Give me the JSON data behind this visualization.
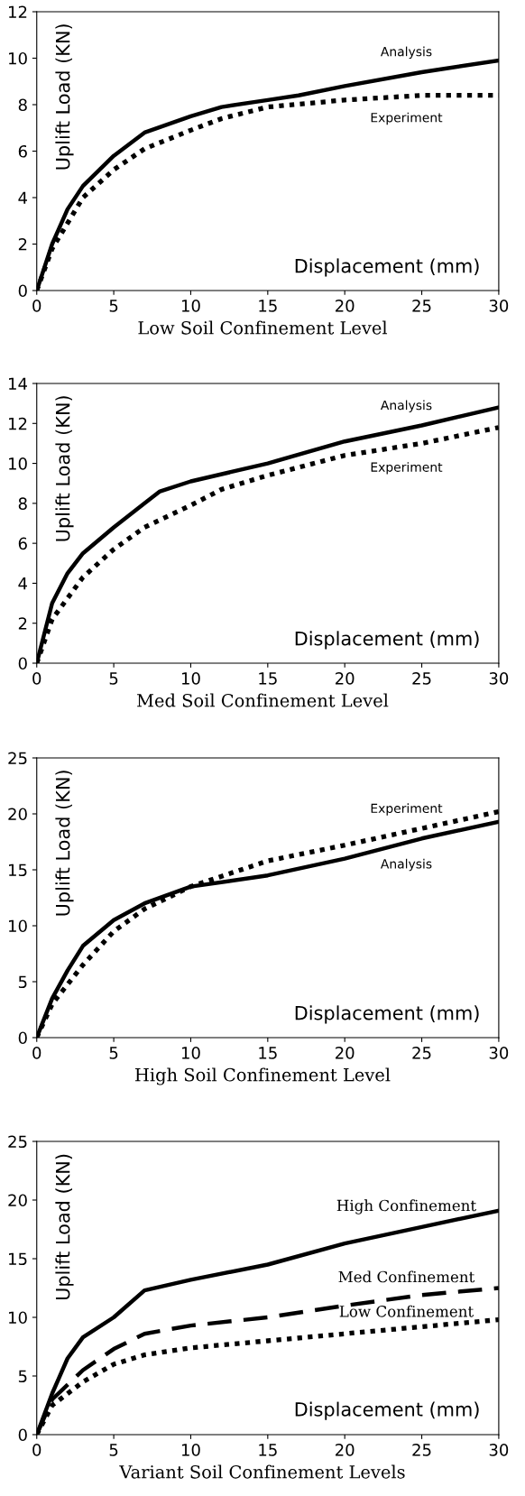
{
  "chart_data": [
    {
      "type": "line",
      "title": "Low Soil Confinement Level",
      "xlabel": "Displacement (mm)",
      "ylabel": "Uplift Load (KN)",
      "xlim": [
        0,
        30
      ],
      "ylim": [
        0,
        12
      ],
      "xticks": [
        0,
        5,
        10,
        15,
        20,
        25,
        30
      ],
      "yticks": [
        0,
        2,
        4,
        6,
        8,
        10,
        12
      ],
      "grid": false,
      "legend": false,
      "series": [
        {
          "name": "Analysis",
          "color": "#000000",
          "line_style": "solid",
          "x": [
            0,
            1,
            2,
            3,
            5,
            7,
            10,
            12,
            15,
            17,
            20,
            25,
            30
          ],
          "values": [
            0,
            2,
            3.5,
            4.5,
            5.8,
            6.8,
            7.5,
            7.9,
            8.2,
            8.4,
            8.8,
            9.4,
            9.9
          ]
        },
        {
          "name": "Experiment",
          "color": "#000000",
          "line_style": "dotted",
          "x": [
            0,
            1,
            3,
            5,
            7,
            10,
            12,
            15,
            20,
            25,
            30
          ],
          "values": [
            0,
            1.8,
            4,
            5.2,
            6.1,
            6.9,
            7.4,
            7.9,
            8.2,
            8.4,
            8.4
          ]
        }
      ]
    },
    {
      "type": "line",
      "title": "Med Soil Confinement Level",
      "xlabel": "Displacement (mm)",
      "ylabel": "Uplift Load (KN)",
      "xlim": [
        0,
        30
      ],
      "ylim": [
        0,
        14
      ],
      "xticks": [
        0,
        5,
        10,
        15,
        20,
        25,
        30
      ],
      "yticks": [
        0,
        2,
        4,
        6,
        8,
        10,
        12,
        14
      ],
      "grid": false,
      "legend": false,
      "series": [
        {
          "name": "Analysis",
          "color": "#000000",
          "line_style": "solid",
          "x": [
            0,
            1,
            2,
            3,
            5,
            7,
            8,
            10,
            15,
            20,
            25,
            30
          ],
          "values": [
            0,
            3,
            4.5,
            5.5,
            6.8,
            8,
            8.6,
            9.1,
            10,
            11.1,
            11.9,
            12.8
          ]
        },
        {
          "name": "Experiment",
          "color": "#000000",
          "line_style": "dotted",
          "x": [
            0,
            1,
            3,
            5,
            7,
            10,
            12,
            15,
            20,
            25,
            30
          ],
          "values": [
            0,
            2.2,
            4.3,
            5.7,
            6.8,
            7.9,
            8.7,
            9.4,
            10.4,
            11,
            11.8
          ]
        }
      ]
    },
    {
      "type": "line",
      "title": "High Soil Confinement Level",
      "xlabel": "Displacement (mm)",
      "ylabel": "Uplift Load (KN)",
      "xlim": [
        0,
        30
      ],
      "ylim": [
        0,
        25
      ],
      "xticks": [
        0,
        5,
        10,
        15,
        20,
        25,
        30
      ],
      "yticks": [
        0,
        5,
        10,
        15,
        20,
        25
      ],
      "grid": false,
      "legend": false,
      "series": [
        {
          "name": "Experiment",
          "color": "#000000",
          "line_style": "dotted",
          "x": [
            0,
            1,
            3,
            5,
            7,
            10,
            15,
            20,
            25,
            30
          ],
          "values": [
            0,
            3,
            6.5,
            9.5,
            11.5,
            13.5,
            15.8,
            17.2,
            18.7,
            20.2
          ]
        },
        {
          "name": "Analysis",
          "color": "#000000",
          "line_style": "solid",
          "x": [
            0,
            1,
            2,
            3,
            5,
            7,
            10,
            15,
            20,
            25,
            30
          ],
          "values": [
            0,
            3.5,
            6,
            8.2,
            10.5,
            12,
            13.5,
            14.5,
            16,
            17.8,
            19.3
          ]
        }
      ]
    },
    {
      "type": "line",
      "title": "Variant Soil Confinement Levels",
      "xlabel": "Displacement (mm)",
      "ylabel": "Uplift Load (KN)",
      "xlim": [
        0,
        30
      ],
      "ylim": [
        0,
        25
      ],
      "xticks": [
        0,
        5,
        10,
        15,
        20,
        25,
        30
      ],
      "yticks": [
        0,
        5,
        10,
        15,
        20,
        25
      ],
      "grid": false,
      "legend": false,
      "series": [
        {
          "name": "High Confinement",
          "color": "#000000",
          "line_style": "solid",
          "x": [
            0,
            1,
            2,
            3,
            5,
            7,
            10,
            15,
            20,
            25,
            30
          ],
          "values": [
            0,
            3.5,
            6.5,
            8.3,
            10,
            12.3,
            13.2,
            14.5,
            16.3,
            17.7,
            19.1
          ]
        },
        {
          "name": "Med Confinement",
          "color": "#000000",
          "line_style": "dashed",
          "x": [
            0,
            1,
            3,
            5,
            7,
            10,
            15,
            20,
            25,
            30
          ],
          "values": [
            0,
            3,
            5.5,
            7.3,
            8.6,
            9.3,
            10,
            11,
            11.9,
            12.5
          ]
        },
        {
          "name": "Low Confinement",
          "color": "#000000",
          "line_style": "dotted",
          "x": [
            0,
            1,
            3,
            5,
            7,
            10,
            15,
            20,
            25,
            30
          ],
          "values": [
            0,
            2.5,
            4.5,
            6,
            6.8,
            7.4,
            8,
            8.6,
            9.2,
            9.8
          ]
        }
      ]
    }
  ]
}
